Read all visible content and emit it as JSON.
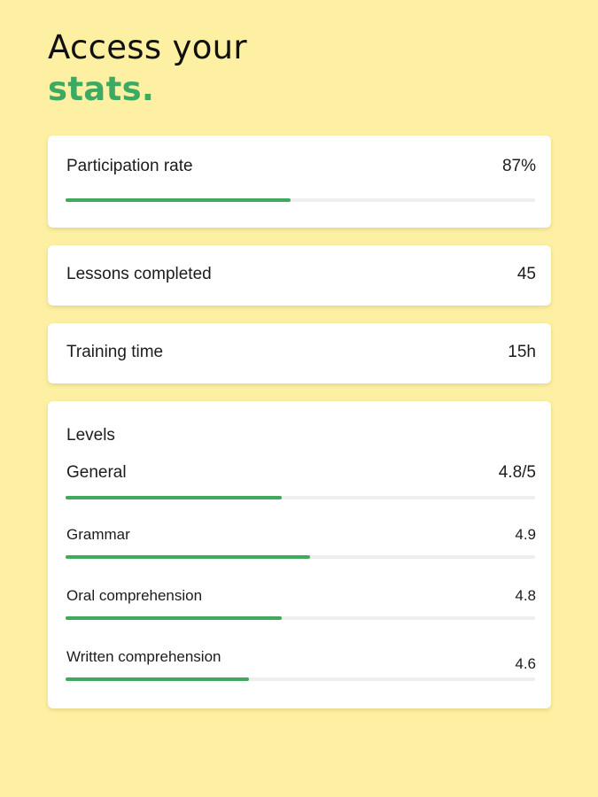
{
  "headline": {
    "line1": "Access your",
    "line2": "stats."
  },
  "participation": {
    "label": "Participation rate",
    "value": "87%",
    "progress": 0.48
  },
  "lessons": {
    "label": "Lessons completed",
    "value": "45"
  },
  "training": {
    "label": "Training time",
    "value": "15h"
  },
  "levels": {
    "title": "Levels",
    "general": {
      "label": "General",
      "value": "4.8/5",
      "progress": 0.46
    },
    "items": [
      {
        "label": "Grammar",
        "value": "4.9",
        "progress": 0.52
      },
      {
        "label": "Oral comprehension",
        "value": "4.8",
        "progress": 0.46
      },
      {
        "label": "Written comprehension",
        "value": "4.6",
        "progress": 0.39
      }
    ]
  },
  "colors": {
    "background": "#fdf0a2",
    "accent": "#3daa63",
    "track": "#eeeeee"
  }
}
